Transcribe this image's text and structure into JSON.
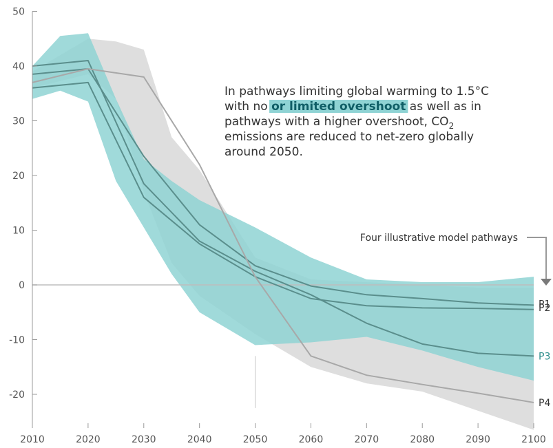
{
  "chart_data": {
    "type": "area",
    "title": "",
    "xlabel": "",
    "ylabel": "",
    "xlim": [
      2010,
      2100
    ],
    "ylim": [
      -25,
      50
    ],
    "x_ticks": [
      2010,
      2020,
      2030,
      2040,
      2050,
      2060,
      2070,
      2080,
      2090,
      2100
    ],
    "y_ticks": [
      -20,
      -10,
      0,
      10,
      20,
      30,
      40,
      50
    ],
    "colors": {
      "teal_band": "#8fd3d4",
      "grey_band": "#d6d6d6",
      "pathway_teal": "#5a8e8c",
      "pathway_grey": "#a8a8a8",
      "zero_line": "#bdbdbd",
      "highlight_bg": "#8fd3d4",
      "highlight_text": "#0f5e66",
      "label_teal": "#2a8c8a",
      "label_dark": "#333333"
    },
    "bands": [
      {
        "id": "limited-overshoot",
        "color": "teal",
        "x": [
          2010,
          2015,
          2020,
          2025,
          2030,
          2035,
          2040,
          2050,
          2060,
          2070,
          2080,
          2090,
          2100
        ],
        "upper": [
          40,
          45.5,
          46,
          34,
          23,
          19,
          15.5,
          10.5,
          5,
          1,
          0.5,
          0.5,
          1.5
        ],
        "lower": [
          34,
          35.5,
          33.5,
          19,
          10.5,
          2,
          -5,
          -11,
          -10.5,
          -9.5,
          -12,
          -15,
          -17.5
        ]
      },
      {
        "id": "higher-overshoot",
        "color": "grey",
        "x": [
          2010,
          2020,
          2025,
          2030,
          2035,
          2040,
          2050,
          2060,
          2070,
          2080,
          2090,
          2100
        ],
        "upper": [
          39,
          45,
          44.5,
          43,
          27,
          21,
          5,
          1,
          0.5,
          0,
          -0.5,
          -0.5
        ],
        "lower": [
          36,
          38.5,
          34,
          17,
          4,
          -2,
          -9,
          -15,
          -18,
          -19.5,
          -23,
          -26.5
        ]
      }
    ],
    "series": [
      {
        "name": "P1",
        "color": "teal",
        "x": [
          2010,
          2020,
          2030,
          2040,
          2050,
          2060,
          2070,
          2080,
          2090,
          2100
        ],
        "values": [
          38.5,
          39.5,
          23.5,
          11,
          3.5,
          -0.2,
          -1.8,
          -2.5,
          -3.3,
          -3.7
        ]
      },
      {
        "name": "P2",
        "color": "teal",
        "x": [
          2010,
          2020,
          2030,
          2040,
          2050,
          2060,
          2070,
          2080,
          2090,
          2100
        ],
        "values": [
          36,
          37,
          16,
          7.5,
          1.5,
          -2.5,
          -3.8,
          -4.2,
          -4.3,
          -4.5
        ]
      },
      {
        "name": "P3",
        "color": "teal",
        "x": [
          2010,
          2020,
          2030,
          2040,
          2050,
          2060,
          2070,
          2080,
          2090,
          2100
        ],
        "values": [
          40,
          41,
          18.5,
          8,
          2.5,
          -1.8,
          -7,
          -10.8,
          -12.5,
          -13
        ]
      },
      {
        "name": "P4",
        "color": "grey",
        "x": [
          2010,
          2020,
          2030,
          2040,
          2050,
          2060,
          2070,
          2080,
          2090,
          2100
        ],
        "values": [
          37,
          39.5,
          38,
          22,
          1.5,
          -13,
          -16.5,
          -18.2,
          -19.8,
          -21.5
        ]
      }
    ],
    "annotation": {
      "line1": "In pathways limiting global warming to 1.5°C",
      "line2_before": "with no ",
      "line2_highlight": "or limited overshoot",
      "line2_after": " as well as in",
      "line3_before": "pathways with a higher overshoot, CO",
      "line3_sub": "2",
      "line4": "emissions are reduced to net-zero globally",
      "line5": "around 2050."
    },
    "callout": "Four illustrative model pathways",
    "reference_line_x": 2050
  }
}
